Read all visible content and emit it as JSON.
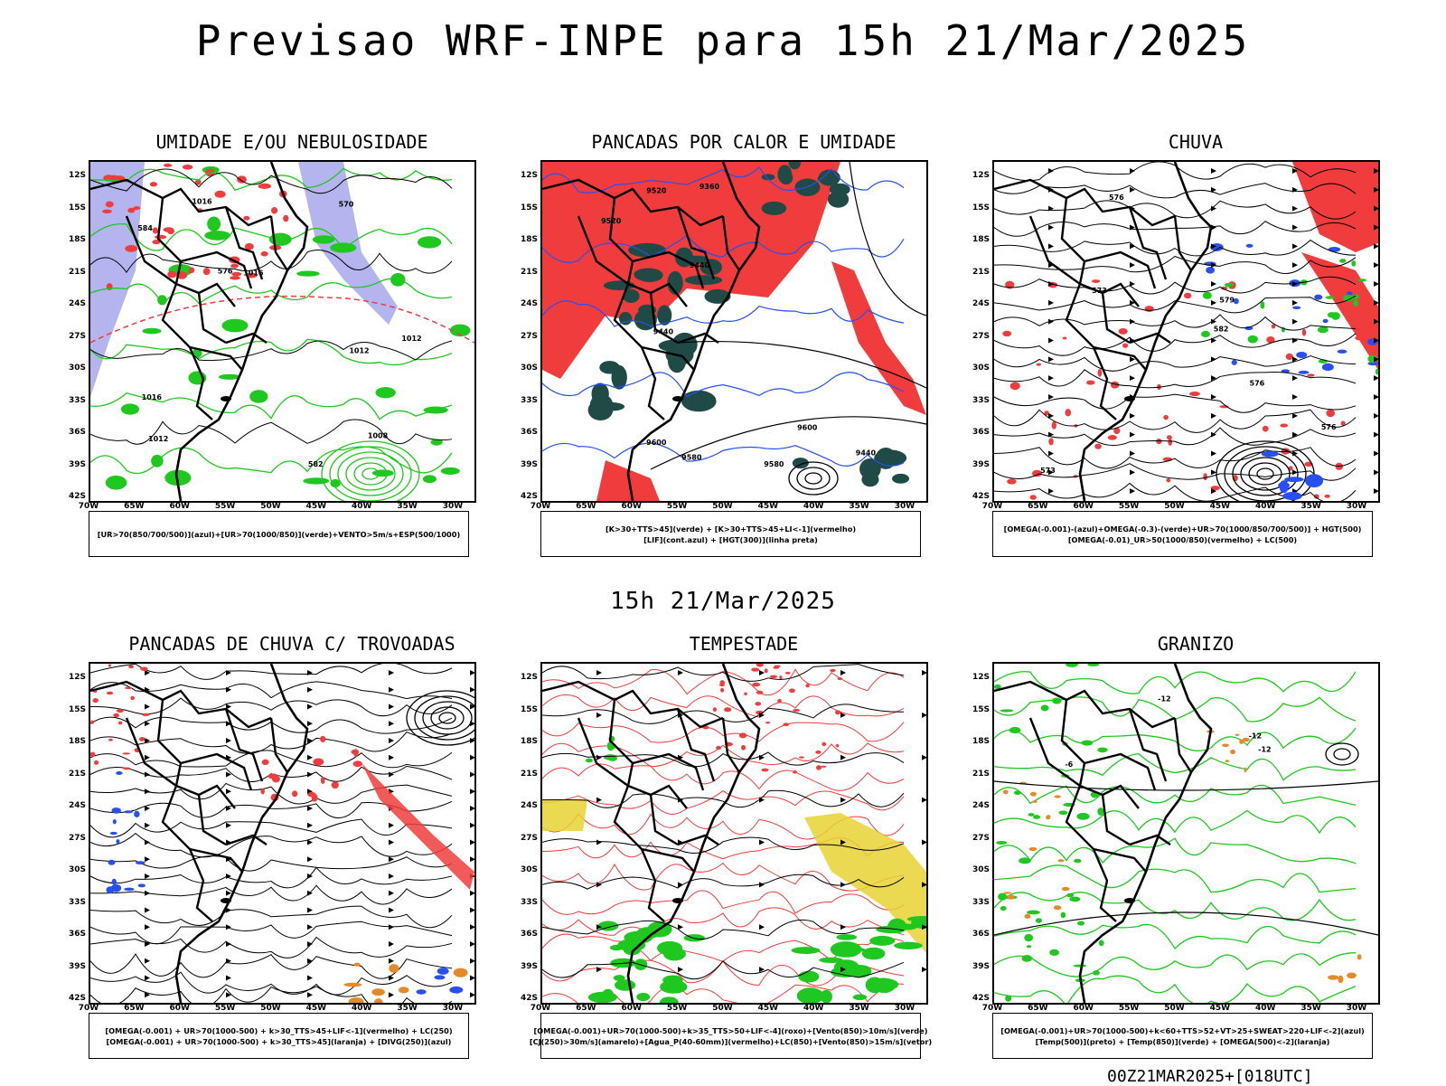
{
  "title": "Previsao WRF-INPE  para 15h 21/Mar/2025",
  "mid_title": "15h 21/Mar/2025",
  "footer": "00Z21MAR2025+[018UTC]",
  "axes": {
    "lat_labels": [
      "12S",
      "15S",
      "18S",
      "21S",
      "24S",
      "27S",
      "30S",
      "33S",
      "36S",
      "39S",
      "42S"
    ],
    "lon_labels": [
      "70W",
      "65W",
      "60W",
      "55W",
      "50W",
      "45W",
      "40W",
      "35W",
      "30W"
    ]
  },
  "colors": {
    "red": "#f03c3c",
    "green": "#1ec81e",
    "blue": "#2850f0",
    "lavender": "#b4b4ee",
    "dark_teal": "#1f4a46",
    "yellow": "#e6d232",
    "orange": "#e68a28"
  },
  "panels": [
    {
      "title": "UMIDADE E/OU NEBULOSIDADE",
      "legend": [
        "[UR>70(850/700/500)](azul)+[UR>70(1000/850)](verde)+VENTO>5m/s+ESP(500/1000)"
      ],
      "contour_labels": [
        "1012",
        "1012",
        "1012",
        "1016",
        "1016",
        "1008",
        "1016",
        "570",
        "576",
        "582",
        "584"
      ]
    },
    {
      "title": "PANCADAS POR CALOR E UMIDADE",
      "legend": [
        "[K>30+TTS>45](verde) + [K>30+TTS>45+LI<-1](vermelho)",
        "[LIF](cont.azul) + [HGT(300)](linha preta)"
      ],
      "contour_labels": [
        "9580",
        "9580",
        "9600",
        "9600",
        "9520",
        "9520",
        "9440",
        "9440",
        "9360",
        "9440"
      ]
    },
    {
      "title": "CHUVA",
      "legend": [
        "[OMEGA(-0.001)-(azul)+OMEGA(-0.3)-(verde)+UR>70(1000/850/700/500)] + HGT(500)",
        "[OMEGA(-0.01)_UR>50(1000/850)(vermelho) + LC(500)"
      ],
      "contour_labels": [
        "573",
        "576",
        "576",
        "573",
        "576",
        "579",
        "582"
      ]
    },
    {
      "title": "PANCADAS DE CHUVA C/ TROVOADAS",
      "legend": [
        "[OMEGA(-0.001) + UR>70(1000-500) + k>30_TTS>45+LIF<-1](vermelho) + LC(250)",
        "[OMEGA(-0.001) + UR>70(1000-500) + k>30_TTS>45](laranja) + [DIVG(250)](azul)"
      ],
      "contour_labels": []
    },
    {
      "title": "TEMPESTADE",
      "legend": [
        "[OMEGA(-0.001)+UR>70(1000-500)+k>35_TTS>50+LIF<-4](roxo)+[Vento(850)>10m/s](verde)",
        "[CJ(250)>30m/s](amarelo)+[Agua_P(40-60mm)](vermelho)+LC(850)+[Vento(850)>15m/s](vetor)"
      ],
      "contour_labels": []
    },
    {
      "title": "GRANIZO",
      "legend": [
        "[OMEGA(-0.001)+UR>70(1000-500)+k<60+TTS>52+VT>25+SWEAT>220+LIF<-2](azul)",
        "[Temp(500)](preto) + [Temp(850)](verde) + [OMEGA(500)<-2](laranja)"
      ],
      "contour_labels": [
        "-12",
        "-12",
        "-12",
        "-6"
      ]
    }
  ]
}
